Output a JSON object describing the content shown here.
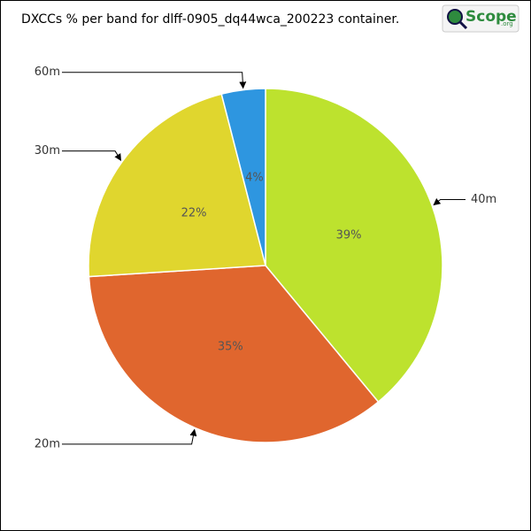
{
  "chart_data": {
    "type": "pie",
    "title": "DXCCs % per band for dlff-0905_dq44wca_200223 container.",
    "logo": {
      "text": "Scope",
      "suffix": ".org"
    },
    "categories": [
      "40m",
      "20m",
      "30m",
      "60m"
    ],
    "values": [
      39,
      35,
      22,
      4
    ],
    "value_labels": [
      "39%",
      "35%",
      "22%",
      "4%"
    ],
    "colors": [
      "#bde22e",
      "#e0662e",
      "#e0d62e",
      "#2e96e0"
    ]
  }
}
